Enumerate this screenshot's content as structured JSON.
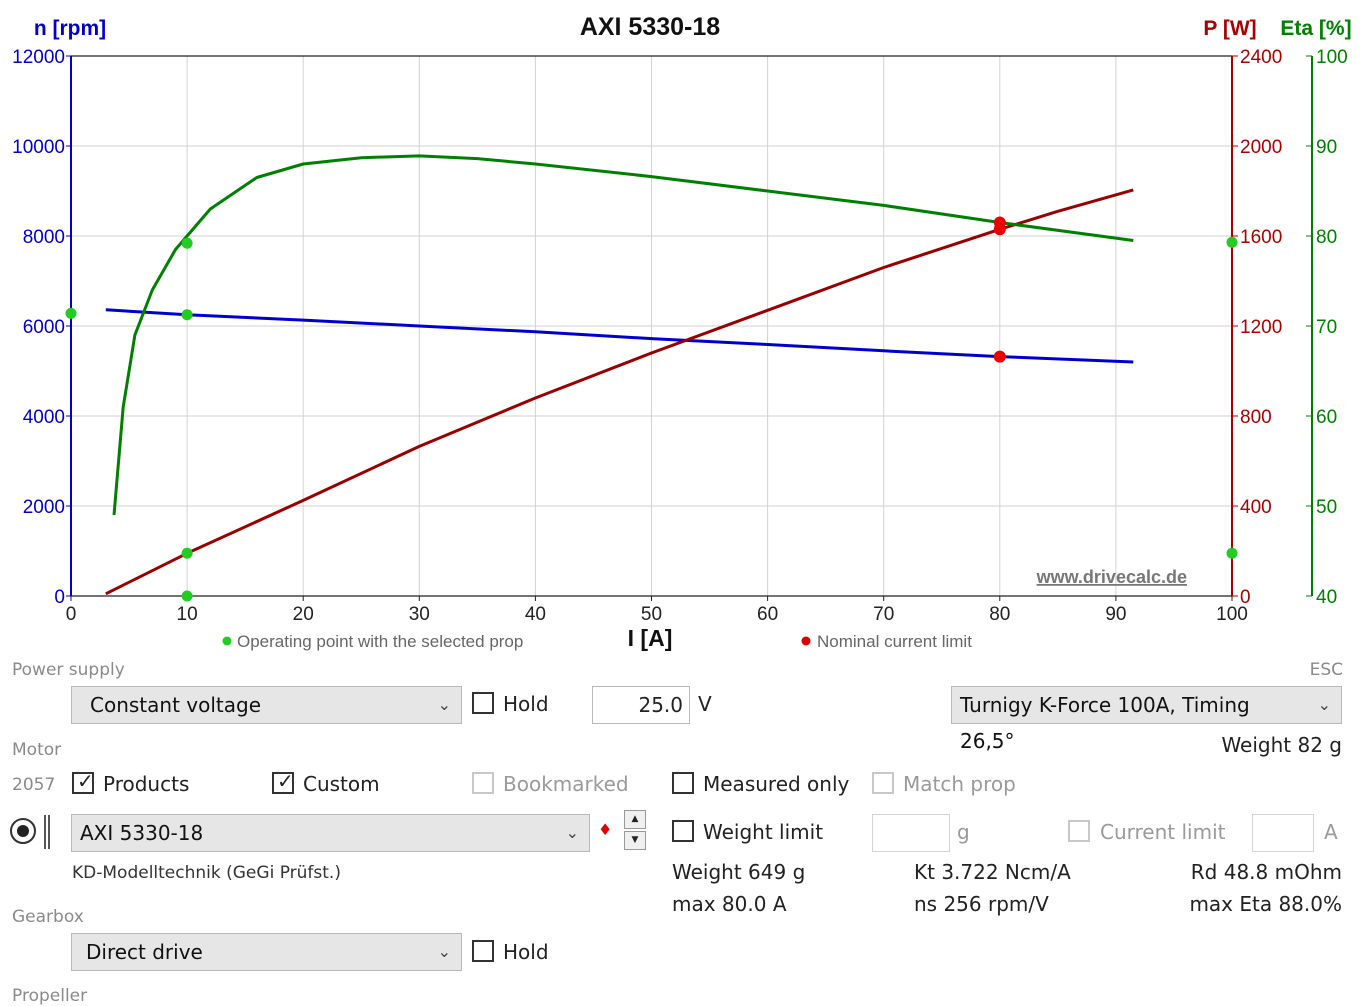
{
  "chart_data": {
    "type": "line",
    "title": "AXI 5330-18",
    "xlabel": "I [A]",
    "xlim": [
      0,
      100
    ],
    "xticks": [
      0,
      10,
      20,
      30,
      40,
      50,
      60,
      70,
      80,
      90,
      100
    ],
    "axes": {
      "left": {
        "label": "n [rpm]",
        "color": "#0000cc",
        "range": [
          0,
          12000
        ],
        "ticks": [
          0,
          2000,
          4000,
          6000,
          8000,
          10000,
          12000
        ]
      },
      "right1": {
        "label": "P [W]",
        "color": "#aa0000",
        "range": [
          0,
          2400
        ],
        "ticks": [
          0,
          400,
          800,
          1200,
          1600,
          2000,
          2400
        ]
      },
      "right2": {
        "label": "Eta [%]",
        "color": "#008000",
        "range": [
          40,
          100
        ],
        "ticks": [
          40,
          50,
          60,
          70,
          80,
          90,
          100
        ]
      }
    },
    "series": [
      {
        "name": "n",
        "axis": "left",
        "color": "#0000cc",
        "x": [
          3,
          10,
          20,
          30,
          40,
          50,
          60,
          70,
          80,
          91.5
        ],
        "y": [
          6360,
          6250,
          6130,
          6000,
          5870,
          5720,
          5590,
          5450,
          5320,
          5200
        ]
      },
      {
        "name": "P",
        "axis": "right1",
        "color": "#990000",
        "x": [
          3,
          10,
          20,
          30,
          40,
          50,
          60,
          70,
          80,
          85,
          91.5
        ],
        "y": [
          10,
          190,
          425,
          665,
          880,
          1080,
          1270,
          1460,
          1630,
          1710,
          1805
        ]
      },
      {
        "name": "Eta",
        "axis": "right2",
        "color": "#008000",
        "x": [
          3.7,
          4.5,
          5.5,
          7,
          9,
          12,
          16,
          20,
          25,
          30,
          35,
          40,
          50,
          60,
          70,
          80,
          91.5
        ],
        "y": [
          49,
          61,
          69,
          74,
          78.5,
          83,
          86.5,
          88,
          88.7,
          88.9,
          88.6,
          88,
          86.6,
          85,
          83.4,
          81.5,
          79.5
        ]
      }
    ],
    "operating_points": [
      {
        "x": 10,
        "axis": "left",
        "y": 6250
      },
      {
        "x": 10,
        "axis": "right1",
        "y": 190
      },
      {
        "x": 10,
        "axis": "right2",
        "y": 79.2
      },
      {
        "x": 10,
        "axis": "left",
        "y": 0
      },
      {
        "x": 0,
        "axis": "left",
        "y": 6280
      },
      {
        "x": 100,
        "axis": "right1",
        "y": 190
      },
      {
        "x": 100,
        "axis": "right2",
        "y": 79.3
      }
    ],
    "limit_points": [
      {
        "x": 80,
        "axis": "left",
        "y": 5320
      },
      {
        "x": 80,
        "axis": "right1",
        "y": 1630
      },
      {
        "x": 80,
        "axis": "right2",
        "y": 81.5
      }
    ],
    "legend": [
      {
        "label": "Operating point with the selected prop",
        "color": "#22cc22"
      },
      {
        "label": "Nominal current limit",
        "color": "#dd0000"
      }
    ],
    "watermark": "www.drivecalc.de",
    "grid": true
  },
  "power_supply": {
    "label": "Power supply",
    "mode": "Constant voltage",
    "hold_label": "Hold",
    "voltage": "25.0",
    "voltage_unit": "V"
  },
  "esc": {
    "label": "ESC",
    "selected": "Turnigy K-Force 100A, Timing 26,5°",
    "weight": "Weight 82 g"
  },
  "motor": {
    "label": "Motor",
    "count": "2057",
    "products_label": "Products",
    "custom_label": "Custom",
    "bookmarked_label": "Bookmarked",
    "measured_only_label": "Measured only",
    "match_prop_label": "Match prop",
    "selected": "AXI 5330-18",
    "source": "KD-Modelltechnik (GeGi Prüfst.)",
    "weight_limit_label": "Weight limit",
    "weight_unit": "g",
    "current_limit_label": "Current limit",
    "current_unit": "A",
    "weight": "Weight 649 g",
    "max_current": "max 80.0 A",
    "kt": "Kt 3.722 Ncm/A",
    "ns": "ns 256 rpm/V",
    "rd": "Rd 48.8 mOhm",
    "max_eta": "max Eta 88.0%"
  },
  "gearbox": {
    "label": "Gearbox",
    "selected": "Direct drive",
    "hold_label": "Hold"
  },
  "propeller": {
    "label": "Propeller"
  }
}
